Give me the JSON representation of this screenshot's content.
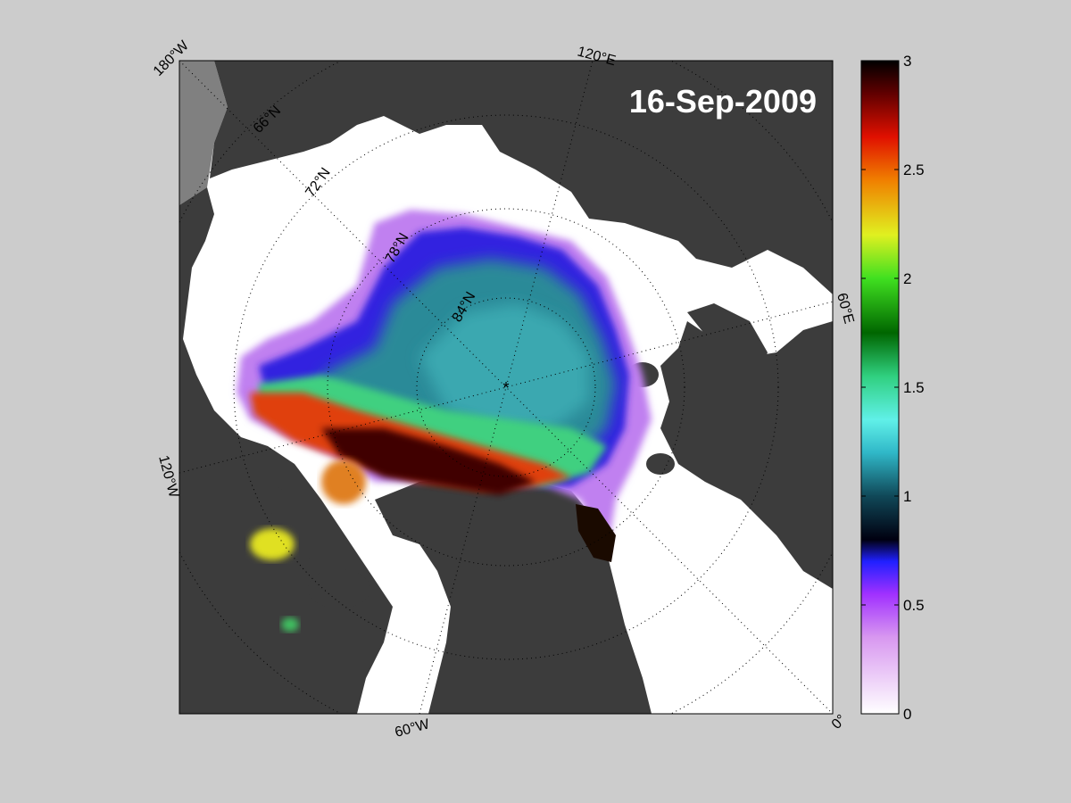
{
  "map": {
    "date_label": "16-Sep-2009",
    "center_marker": "*",
    "longitude_labels": [
      "180°W",
      "120°E",
      "60°E",
      "0°",
      "60°W",
      "120°W"
    ],
    "latitude_labels": [
      "66°N",
      "72°N",
      "78°N",
      "84°N"
    ],
    "colors": {
      "background": "#cccccc",
      "land": "#3c3c3c",
      "ocean_open": "#ffffff",
      "no_data": "#808080"
    }
  },
  "colorbar": {
    "min": 0,
    "max": 3,
    "tick_labels": [
      "3",
      "2.5",
      "2",
      "1.5",
      "1",
      "0.5",
      "0"
    ],
    "stops": [
      {
        "value": 0.0,
        "color": "#ffffff"
      },
      {
        "value": 0.35,
        "color": "#d898f0"
      },
      {
        "value": 0.55,
        "color": "#a030ff"
      },
      {
        "value": 0.7,
        "color": "#2020ff"
      },
      {
        "value": 0.8,
        "color": "#000010"
      },
      {
        "value": 1.0,
        "color": "#104858"
      },
      {
        "value": 1.2,
        "color": "#30b8c8"
      },
      {
        "value": 1.35,
        "color": "#60f0e8"
      },
      {
        "value": 1.55,
        "color": "#30d080"
      },
      {
        "value": 1.75,
        "color": "#006600"
      },
      {
        "value": 2.0,
        "color": "#40e020"
      },
      {
        "value": 2.2,
        "color": "#e0f020"
      },
      {
        "value": 2.45,
        "color": "#f08000"
      },
      {
        "value": 2.65,
        "color": "#e01000"
      },
      {
        "value": 2.85,
        "color": "#600000"
      },
      {
        "value": 3.0,
        "color": "#000000"
      }
    ]
  }
}
